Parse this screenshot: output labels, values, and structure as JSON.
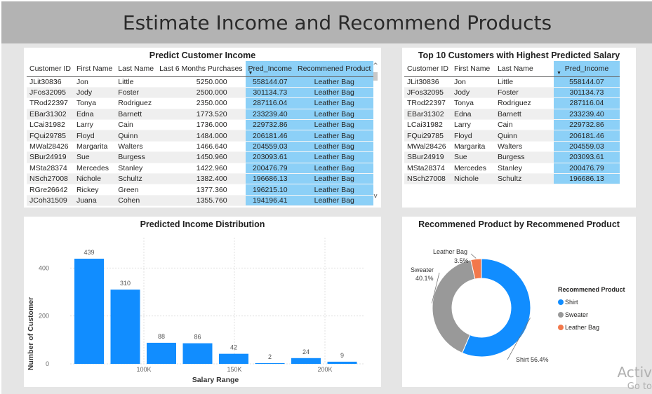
{
  "header": {
    "title": "Estimate Income and Recommend Products"
  },
  "predict_table": {
    "title": "Predict Customer Income",
    "columns": [
      "Customer ID",
      "First Name",
      "Last Name",
      "Last 6 Months Purchases",
      "Pred_Income",
      "Recommened Product"
    ],
    "rows": [
      [
        "JLit30836",
        "Jon",
        "Little",
        "5250.000",
        "558144.07",
        "Leather Bag"
      ],
      [
        "JFos32095",
        "Jody",
        "Foster",
        "2500.000",
        "301134.73",
        "Leather Bag"
      ],
      [
        "TRod22397",
        "Tonya",
        "Rodriguez",
        "2350.000",
        "287116.04",
        "Leather Bag"
      ],
      [
        "EBar31302",
        "Edna",
        "Barnett",
        "1773.520",
        "233239.40",
        "Leather Bag"
      ],
      [
        "LCai31982",
        "Larry",
        "Cain",
        "1736.000",
        "229732.86",
        "Leather Bag"
      ],
      [
        "FQui29785",
        "Floyd",
        "Quinn",
        "1484.000",
        "206181.46",
        "Leather Bag"
      ],
      [
        "MWal28426",
        "Margarita",
        "Walters",
        "1466.640",
        "204559.03",
        "Leather Bag"
      ],
      [
        "SBur24919",
        "Sue",
        "Burgess",
        "1450.960",
        "203093.61",
        "Leather Bag"
      ],
      [
        "MSta28374",
        "Mercedes",
        "Stanley",
        "1422.960",
        "200476.79",
        "Leather Bag"
      ],
      [
        "NSch27008",
        "Nichole",
        "Schultz",
        "1382.400",
        "196686.13",
        "Leather Bag"
      ],
      [
        "RGre26642",
        "Rickey",
        "Green",
        "1377.360",
        "196215.10",
        "Leather Bag"
      ],
      [
        "JCoh31509",
        "Juana",
        "Cohen",
        "1355.760",
        "194196.41",
        "Leather Bag"
      ]
    ],
    "scroll_up": "^",
    "scroll_down": "v"
  },
  "top10_table": {
    "title": "Top 10 Customers with Highest Predicted Salary",
    "columns": [
      "Customer ID",
      "First Name",
      "Last Name",
      "Pred_Income"
    ],
    "rows": [
      [
        "JLit30836",
        "Jon",
        "Little",
        "558144.07"
      ],
      [
        "JFos32095",
        "Jody",
        "Foster",
        "301134.73"
      ],
      [
        "TRod22397",
        "Tonya",
        "Rodriguez",
        "287116.04"
      ],
      [
        "EBar31302",
        "Edna",
        "Barnett",
        "233239.40"
      ],
      [
        "LCai31982",
        "Larry",
        "Cain",
        "229732.86"
      ],
      [
        "FQui29785",
        "Floyd",
        "Quinn",
        "206181.46"
      ],
      [
        "MWal28426",
        "Margarita",
        "Walters",
        "204559.03"
      ],
      [
        "SBur24919",
        "Sue",
        "Burgess",
        "203093.61"
      ],
      [
        "MSta28374",
        "Mercedes",
        "Stanley",
        "200476.79"
      ],
      [
        "NSch27008",
        "Nichole",
        "Schultz",
        "196686.13"
      ]
    ]
  },
  "chart_data": [
    {
      "type": "bar",
      "title": "Predicted Income Distribution",
      "xlabel": "Salary Range",
      "ylabel": "Number of Customer",
      "values": [
        439,
        310,
        88,
        86,
        42,
        2,
        24,
        9
      ],
      "x_ticks": [
        "100K",
        "150K",
        "200K"
      ],
      "y_ticks": [
        "0",
        "200",
        "400"
      ],
      "ylim": [
        0,
        480
      ],
      "color": "#118DFF",
      "grid": true
    },
    {
      "type": "pie",
      "title": "Recommened Product by Recommened Product",
      "legend_title": "Recommened Product",
      "legend_position": "right",
      "slices": [
        {
          "label": "Shirt",
          "value": 56.4,
          "display": "Shirt 56.4%",
          "color": "#118DFF"
        },
        {
          "label": "Sweater",
          "value": 40.1,
          "display": "40.1%",
          "color": "#999999"
        },
        {
          "label": "Leather Bag",
          "value": 3.5,
          "display": "3.5%",
          "color": "#F2784B"
        }
      ]
    }
  ],
  "watermark": {
    "line1": "Activ",
    "line2": "Go to"
  }
}
